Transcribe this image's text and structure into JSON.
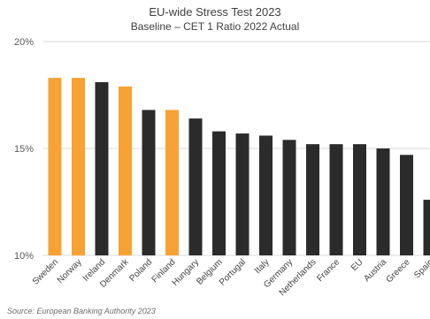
{
  "title": "EU-wide Stress Test 2023",
  "subtitle": "Baseline – CET 1 Ratio 2022 Actual",
  "source": "Source: European Banking Authority 2023",
  "colors": {
    "highlight": "#F7A233",
    "default": "#2B2B2B",
    "grid": "#D9D9D9"
  },
  "chart_data": {
    "type": "bar",
    "title": "EU-wide Stress Test 2023",
    "subtitle": "Baseline – CET 1 Ratio 2022 Actual",
    "xlabel": "",
    "ylabel": "",
    "ylim": [
      10,
      20
    ],
    "yticks": [
      10,
      15,
      20
    ],
    "ytick_labels": [
      "10%",
      "15%",
      "20%"
    ],
    "grid": true,
    "categories": [
      "Sweden",
      "Norway",
      "Ireland",
      "Denmark",
      "Poland",
      "Finland",
      "Hungary",
      "Belgium",
      "Portugal",
      "Italy",
      "Germany",
      "Netherlands",
      "France",
      "EU",
      "Austria",
      "Greece",
      "Spain"
    ],
    "values": [
      18.3,
      18.3,
      18.1,
      17.9,
      16.8,
      16.8,
      16.4,
      15.8,
      15.7,
      15.6,
      15.4,
      15.2,
      15.2,
      15.2,
      15.0,
      14.7,
      12.6
    ],
    "highlighted": [
      "Sweden",
      "Norway",
      "Denmark",
      "Finland"
    ]
  }
}
